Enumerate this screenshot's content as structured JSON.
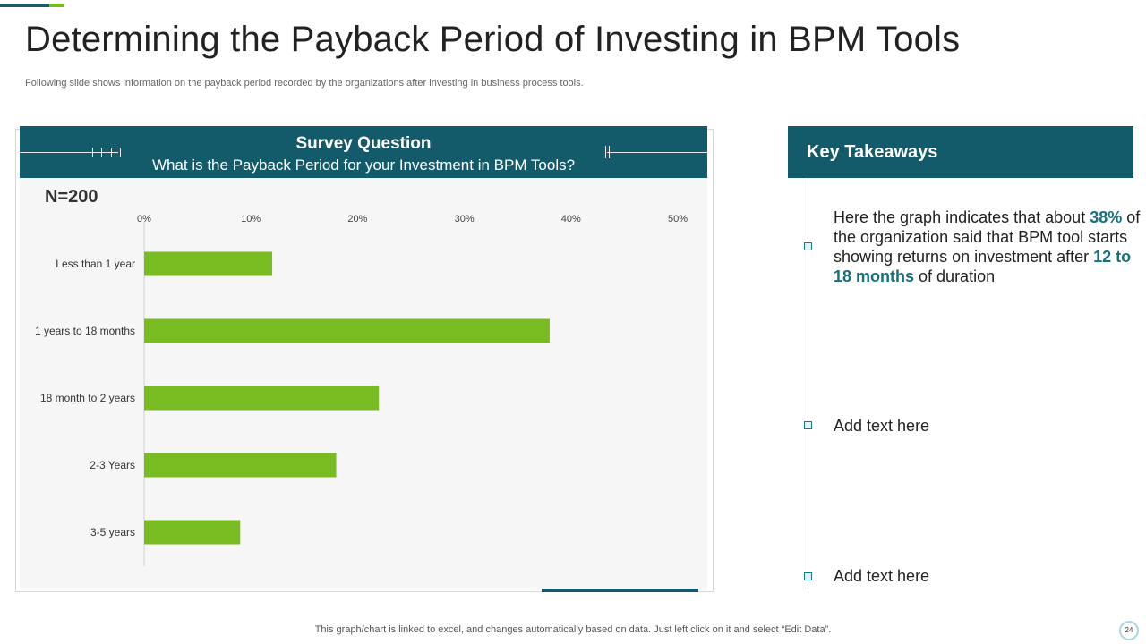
{
  "slide": {
    "title": "Determining the Payback Period of Investing in BPM Tools",
    "subtitle": "Following slide shows information on the payback period recorded by the organizations after investing in business process tools.",
    "footer": "This graph/chart is linked to excel,  and changes automatically based on data. Just left click on it and select “Edit Data”.",
    "page_number": "24"
  },
  "survey": {
    "title": "Survey Question",
    "question": "What is the Payback Period for your Investment in BPM Tools?",
    "sample": "N=200"
  },
  "takeaways": {
    "title": "Key Takeaways",
    "item1": {
      "part1": "Here the graph indicates that about ",
      "highlight1": "38%",
      "part2": " of the organization said that  BPM tool starts showing returns on investment after ",
      "highlight2": "12 to 18 months",
      "part3": " of duration"
    },
    "item2": "Add text here",
    "item3": "Add text here"
  },
  "colors": {
    "bar": "#78bc22",
    "header": "#135b6a",
    "highlight": "#16707f"
  },
  "chart_data": {
    "type": "bar",
    "orientation": "horizontal",
    "title": "What is the Payback Period for your Investment in BPM Tools?",
    "categories": [
      "Less than 1 year",
      "1 years to 18 months",
      "18 month to 2 years",
      "2-3 Years",
      "3-5 years"
    ],
    "values": [
      12,
      38,
      22,
      18,
      9
    ],
    "unit": "%",
    "xlim": [
      0,
      50
    ],
    "ticks": [
      "0%",
      "10%",
      "20%",
      "30%",
      "40%",
      "50%"
    ],
    "axis_position": "top",
    "grid": false,
    "legend": "none"
  }
}
